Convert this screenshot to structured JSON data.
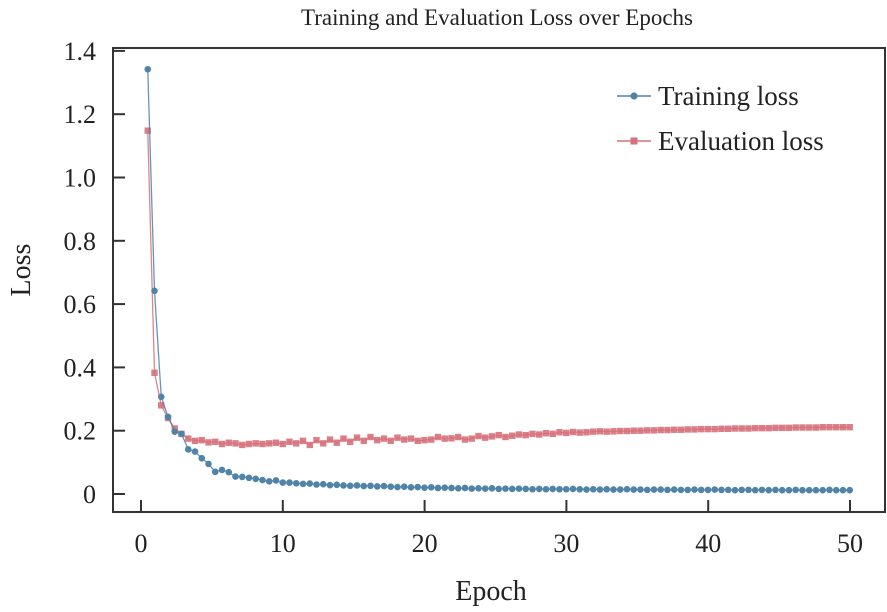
{
  "chart_data": {
    "type": "line",
    "title": "Training and Evaluation Loss over Epochs",
    "xlabel": "Epoch",
    "ylabel": "Loss",
    "xlim": [
      -1.9,
      52.5
    ],
    "ylim": [
      -0.06,
      1.47
    ],
    "xticks": [
      0,
      10,
      20,
      30,
      40,
      50
    ],
    "xtick_labels": [
      "0",
      "10",
      "20",
      "30",
      "40",
      "50"
    ],
    "yticks": [
      0,
      0.2,
      0.4,
      0.6,
      0.8,
      1.0,
      1.2,
      1.4
    ],
    "ytick_labels": [
      "0",
      "0.2",
      "0.4",
      "0.6",
      "0.8",
      "1.0",
      "1.2",
      "1.4"
    ],
    "grid": false,
    "legend_position": "top-right",
    "x_start": 0.476,
    "x_step": 0.476,
    "series": [
      {
        "name": "Training loss",
        "color": "#4f83a8",
        "marker": "circle",
        "values": [
          1.342,
          0.642,
          0.307,
          0.244,
          0.197,
          0.19,
          0.141,
          0.134,
          0.113,
          0.095,
          0.07,
          0.076,
          0.069,
          0.055,
          0.054,
          0.051,
          0.048,
          0.044,
          0.04,
          0.043,
          0.036,
          0.036,
          0.034,
          0.032,
          0.033,
          0.03,
          0.031,
          0.028,
          0.029,
          0.027,
          0.026,
          0.027,
          0.025,
          0.026,
          0.024,
          0.025,
          0.023,
          0.022,
          0.023,
          0.021,
          0.022,
          0.02,
          0.021,
          0.019,
          0.02,
          0.019,
          0.018,
          0.019,
          0.017,
          0.018,
          0.017,
          0.018,
          0.016,
          0.017,
          0.016,
          0.017,
          0.016,
          0.015,
          0.016,
          0.015,
          0.016,
          0.015,
          0.015,
          0.016,
          0.015,
          0.014,
          0.015,
          0.014,
          0.015,
          0.014,
          0.014,
          0.015,
          0.014,
          0.014,
          0.013,
          0.014,
          0.014,
          0.013,
          0.014,
          0.013,
          0.013,
          0.014,
          0.013,
          0.013,
          0.014,
          0.013,
          0.013,
          0.012,
          0.013,
          0.013,
          0.012,
          0.013,
          0.012,
          0.013,
          0.012,
          0.012,
          0.013,
          0.012,
          0.012,
          0.012,
          0.012,
          0.013,
          0.012,
          0.012,
          0.012
        ]
      },
      {
        "name": "Evaluation loss",
        "color": "#d6707a",
        "marker": "square",
        "values": [
          1.148,
          0.383,
          0.28,
          0.24,
          0.207,
          0.19,
          0.175,
          0.168,
          0.17,
          0.163,
          0.165,
          0.158,
          0.162,
          0.16,
          0.155,
          0.158,
          0.16,
          0.158,
          0.16,
          0.162,
          0.158,
          0.165,
          0.16,
          0.168,
          0.155,
          0.17,
          0.16,
          0.172,
          0.162,
          0.175,
          0.165,
          0.178,
          0.168,
          0.18,
          0.17,
          0.175,
          0.168,
          0.178,
          0.172,
          0.175,
          0.168,
          0.17,
          0.172,
          0.18,
          0.175,
          0.176,
          0.18,
          0.172,
          0.175,
          0.183,
          0.178,
          0.182,
          0.186,
          0.18,
          0.184,
          0.188,
          0.186,
          0.19,
          0.188,
          0.192,
          0.19,
          0.195,
          0.193,
          0.196,
          0.194,
          0.195,
          0.197,
          0.198,
          0.197,
          0.198,
          0.199,
          0.199,
          0.2,
          0.2,
          0.201,
          0.201,
          0.202,
          0.202,
          0.203,
          0.203,
          0.204,
          0.204,
          0.205,
          0.205,
          0.205,
          0.206,
          0.206,
          0.207,
          0.207,
          0.207,
          0.208,
          0.208,
          0.208,
          0.209,
          0.209,
          0.209,
          0.21,
          0.21,
          0.21,
          0.21,
          0.211,
          0.211,
          0.211,
          0.211,
          0.211
        ]
      }
    ]
  }
}
